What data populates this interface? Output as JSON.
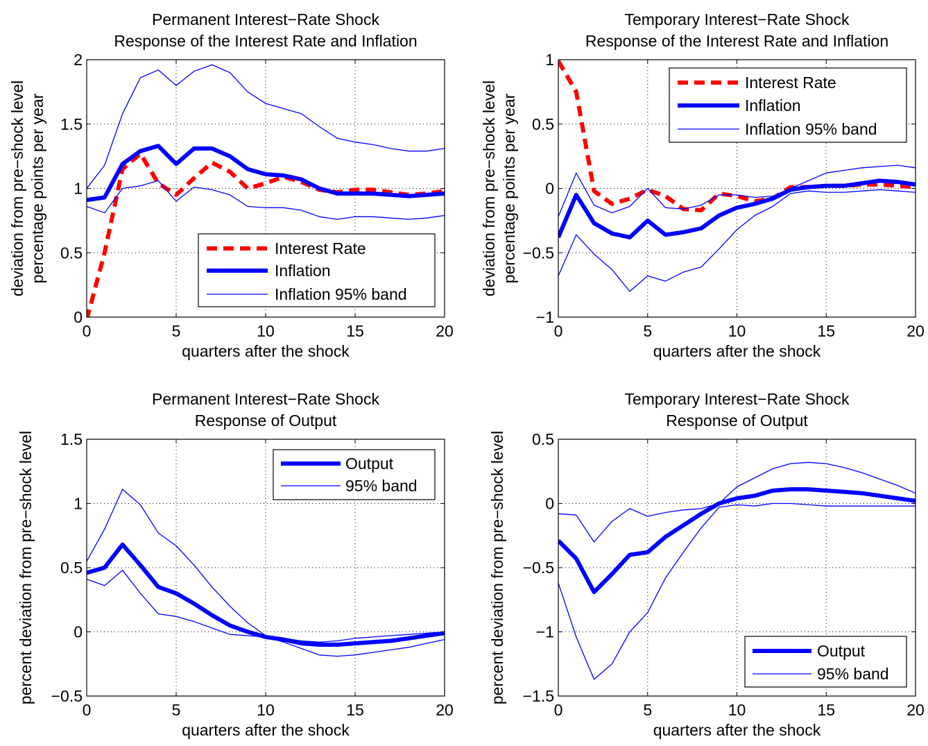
{
  "colors": {
    "interest_rate": "#ff0000",
    "inflation": "#0000ff",
    "axes": "#000000",
    "grid": "#000000"
  },
  "chart_data": [
    {
      "type": "line",
      "title": [
        "Permanent Interest−Rate Shock",
        "Response of the Interest Rate and Inflation"
      ],
      "xlabel": "quarters after the shock",
      "ylabel": [
        "deviation from pre−shock level",
        "percentage points  per year"
      ],
      "xlim": [
        0,
        20
      ],
      "ylim": [
        0,
        2
      ],
      "xticks": [
        0,
        5,
        10,
        15,
        20
      ],
      "xtick_labels": [
        "0",
        "5",
        "10",
        "15",
        "20"
      ],
      "yticks": [
        0,
        0.5,
        1,
        1.5,
        2
      ],
      "ytick_labels": [
        "0",
        "0.5",
        "1",
        "1.5",
        "2"
      ],
      "grid": true,
      "legend_position": "bottom-right",
      "x": [
        0,
        1,
        2,
        3,
        4,
        5,
        6,
        7,
        8,
        9,
        10,
        11,
        12,
        13,
        14,
        15,
        16,
        17,
        18,
        19,
        20
      ],
      "series": [
        {
          "name": "Interest Rate",
          "style": "dashed-thick",
          "color": "#ff0000",
          "values": [
            -0.02,
            0.5,
            1.15,
            1.27,
            1.04,
            0.95,
            1.08,
            1.2,
            1.13,
            1.0,
            1.04,
            1.09,
            1.05,
            0.99,
            0.97,
            0.99,
            0.99,
            0.97,
            0.95,
            0.96,
            0.98
          ]
        },
        {
          "name": "Inflation",
          "style": "solid-thick",
          "color": "#0000ff",
          "values": [
            0.91,
            0.93,
            1.19,
            1.29,
            1.33,
            1.19,
            1.31,
            1.31,
            1.25,
            1.15,
            1.11,
            1.1,
            1.07,
            1.0,
            0.96,
            0.96,
            0.96,
            0.95,
            0.94,
            0.95,
            0.96
          ]
        },
        {
          "name": " Inflation 95% band",
          "style": "solid-thin",
          "color": "#0000ff",
          "values": [
            1.0,
            1.18,
            1.58,
            1.86,
            1.92,
            1.8,
            1.91,
            1.96,
            1.9,
            1.75,
            1.66,
            1.62,
            1.58,
            1.48,
            1.39,
            1.36,
            1.34,
            1.31,
            1.29,
            1.29,
            1.31
          ]
        },
        {
          "style": "solid-thin",
          "color": "#0000ff",
          "values": [
            0.86,
            0.81,
            1.0,
            1.02,
            1.06,
            0.9,
            1.01,
            0.99,
            0.95,
            0.86,
            0.85,
            0.85,
            0.83,
            0.78,
            0.76,
            0.78,
            0.78,
            0.77,
            0.76,
            0.77,
            0.79
          ]
        }
      ]
    },
    {
      "type": "line",
      "title": [
        "Temporary Interest−Rate Shock",
        "Response of the Interest Rate and Inflation"
      ],
      "xlabel": "quarters after the shock",
      "ylabel": [
        "deviation from pre−shock level",
        "percentage points  per year"
      ],
      "xlim": [
        0,
        20
      ],
      "ylim": [
        -1,
        1
      ],
      "xticks": [
        0,
        5,
        10,
        15,
        20
      ],
      "xtick_labels": [
        "0",
        "5",
        "10",
        "15",
        "20"
      ],
      "yticks": [
        -1,
        -0.5,
        0,
        0.5,
        1
      ],
      "ytick_labels": [
        "−1",
        "−0.5",
        "0",
        "0.5",
        "1"
      ],
      "grid": true,
      "legend_position": "top-right",
      "x": [
        0,
        1,
        2,
        3,
        4,
        5,
        6,
        7,
        8,
        9,
        10,
        11,
        12,
        13,
        14,
        15,
        16,
        17,
        18,
        19,
        20
      ],
      "series": [
        {
          "name": "Interest Rate",
          "style": "dashed-thick",
          "color": "#ff0000",
          "values": [
            0.99,
            0.75,
            -0.02,
            -0.12,
            -0.08,
            -0.01,
            -0.06,
            -0.16,
            -0.17,
            -0.04,
            -0.06,
            -0.1,
            -0.08,
            0.01,
            0.01,
            0.02,
            0.02,
            0.03,
            0.03,
            0.02,
            0.01
          ]
        },
        {
          "name": "Inflation",
          "style": "solid-thick",
          "color": "#0000ff",
          "values": [
            -0.38,
            -0.05,
            -0.27,
            -0.35,
            -0.38,
            -0.25,
            -0.36,
            -0.34,
            -0.31,
            -0.21,
            -0.15,
            -0.12,
            -0.08,
            -0.01,
            0.01,
            0.02,
            0.02,
            0.04,
            0.06,
            0.05,
            0.03
          ]
        },
        {
          "name": " Inflation 95% band",
          "style": "solid-thin",
          "color": "#0000ff",
          "values": [
            -0.22,
            0.12,
            -0.13,
            -0.19,
            -0.14,
            0.0,
            -0.15,
            -0.16,
            -0.13,
            -0.05,
            -0.05,
            -0.07,
            -0.06,
            0.0,
            0.06,
            0.12,
            0.14,
            0.16,
            0.17,
            0.18,
            0.16
          ]
        },
        {
          "style": "solid-thin",
          "color": "#0000ff",
          "values": [
            -0.68,
            -0.36,
            -0.51,
            -0.63,
            -0.8,
            -0.68,
            -0.72,
            -0.65,
            -0.61,
            -0.47,
            -0.32,
            -0.21,
            -0.14,
            -0.04,
            -0.02,
            -0.03,
            -0.03,
            -0.02,
            -0.01,
            -0.02,
            -0.03
          ]
        }
      ]
    },
    {
      "type": "line",
      "title": [
        "Permanent Interest−Rate Shock",
        "Response of Output"
      ],
      "xlabel": "quarters after the shock",
      "ylabel": [
        "percent deviation from pre−shock level"
      ],
      "xlim": [
        0,
        20
      ],
      "ylim": [
        -0.5,
        1.5
      ],
      "xticks": [
        0,
        5,
        10,
        15,
        20
      ],
      "xtick_labels": [
        "0",
        "5",
        "10",
        "15",
        "20"
      ],
      "yticks": [
        -0.5,
        0,
        0.5,
        1,
        1.5
      ],
      "ytick_labels": [
        "−0.5",
        "0",
        "0.5",
        "1",
        "1.5"
      ],
      "grid": true,
      "legend_position": "top-right",
      "x": [
        0,
        1,
        2,
        3,
        4,
        5,
        6,
        7,
        8,
        9,
        10,
        11,
        12,
        13,
        14,
        15,
        16,
        17,
        18,
        19,
        20
      ],
      "series": [
        {
          "name": "Output",
          "style": "solid-thick",
          "color": "#0000ff",
          "values": [
            0.46,
            0.5,
            0.68,
            0.52,
            0.35,
            0.3,
            0.22,
            0.13,
            0.05,
            0.0,
            -0.04,
            -0.06,
            -0.09,
            -0.1,
            -0.1,
            -0.09,
            -0.08,
            -0.07,
            -0.05,
            -0.03,
            -0.01
          ]
        },
        {
          "name": "95% band",
          "style": "solid-thin",
          "color": "#0000ff",
          "values": [
            0.55,
            0.8,
            1.11,
            0.99,
            0.77,
            0.67,
            0.52,
            0.35,
            0.2,
            0.07,
            -0.03,
            -0.05,
            -0.07,
            -0.08,
            -0.07,
            -0.05,
            -0.04,
            -0.03,
            -0.02,
            -0.01,
            0.0
          ]
        },
        {
          "style": "solid-thin",
          "color": "#0000ff",
          "values": [
            0.41,
            0.36,
            0.48,
            0.3,
            0.14,
            0.12,
            0.08,
            0.03,
            -0.02,
            -0.03,
            -0.04,
            -0.08,
            -0.13,
            -0.18,
            -0.19,
            -0.18,
            -0.16,
            -0.14,
            -0.12,
            -0.09,
            -0.06
          ]
        }
      ]
    },
    {
      "type": "line",
      "title": [
        "Temporary Interest−Rate Shock",
        "Response of Output"
      ],
      "xlabel": "quarters after the shock",
      "ylabel": [
        "percent deviation from pre−shock level"
      ],
      "xlim": [
        0,
        20
      ],
      "ylim": [
        -1.5,
        0.5
      ],
      "xticks": [
        0,
        5,
        10,
        15,
        20
      ],
      "xtick_labels": [
        "0",
        "5",
        "10",
        "15",
        "20"
      ],
      "yticks": [
        -1.5,
        -1,
        -0.5,
        0,
        0.5
      ],
      "ytick_labels": [
        "−1.5",
        "−1",
        "−0.5",
        "0",
        "0.5"
      ],
      "grid": true,
      "legend_position": "bottom-right",
      "x": [
        0,
        1,
        2,
        3,
        4,
        5,
        6,
        7,
        8,
        9,
        10,
        11,
        12,
        13,
        14,
        15,
        16,
        17,
        18,
        19,
        20
      ],
      "series": [
        {
          "name": "Output",
          "style": "solid-thick",
          "color": "#0000ff",
          "values": [
            -0.29,
            -0.43,
            -0.69,
            -0.55,
            -0.4,
            -0.38,
            -0.26,
            -0.17,
            -0.08,
            0.0,
            0.04,
            0.06,
            0.1,
            0.11,
            0.11,
            0.1,
            0.09,
            0.08,
            0.06,
            0.04,
            0.02
          ]
        },
        {
          "name": "95% band",
          "style": "solid-thin",
          "color": "#0000ff",
          "values": [
            -0.08,
            -0.09,
            -0.3,
            -0.14,
            -0.04,
            -0.1,
            -0.07,
            -0.05,
            -0.04,
            0.0,
            0.13,
            0.2,
            0.27,
            0.31,
            0.32,
            0.31,
            0.28,
            0.24,
            0.19,
            0.14,
            0.08
          ]
        },
        {
          "style": "solid-thin",
          "color": "#0000ff",
          "values": [
            -0.62,
            -1.04,
            -1.37,
            -1.25,
            -1.0,
            -0.85,
            -0.58,
            -0.38,
            -0.19,
            -0.03,
            -0.01,
            -0.02,
            0.0,
            0.0,
            -0.01,
            -0.02,
            -0.02,
            -0.02,
            -0.02,
            -0.02,
            -0.02
          ]
        }
      ]
    }
  ]
}
